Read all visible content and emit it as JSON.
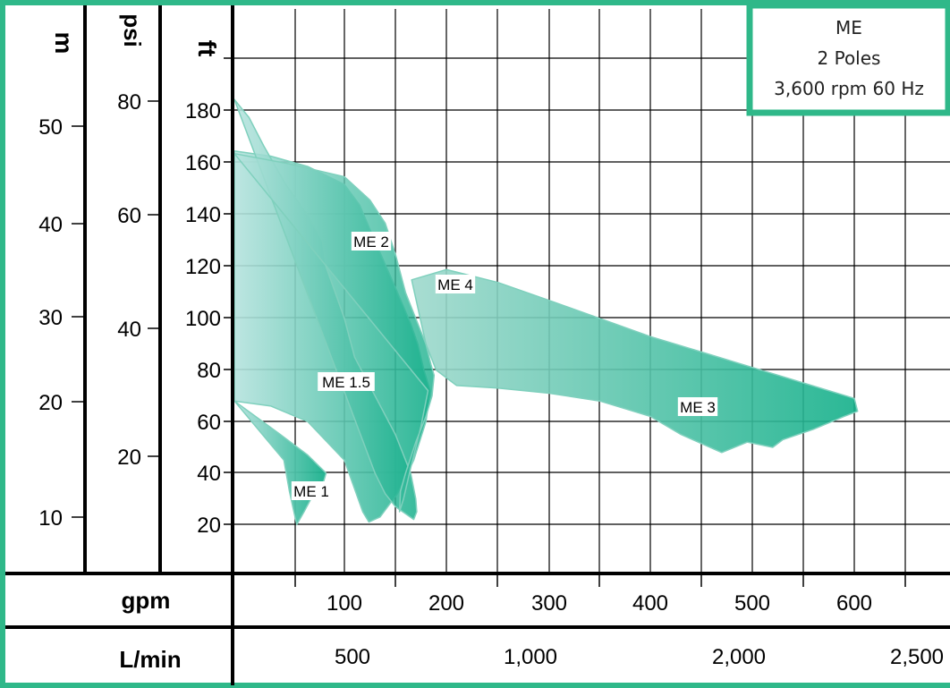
{
  "chart_data": {
    "type": "area",
    "legend_box": {
      "lines": [
        "ME",
        "2 Poles",
        "3,600 rpm 60 Hz"
      ]
    },
    "axes": {
      "left": [
        {
          "title": "m",
          "ticks": [
            "50",
            "40",
            "30",
            "20",
            "10"
          ]
        },
        {
          "title": "psi",
          "ticks": [
            "80",
            "60",
            "40",
            "20"
          ]
        },
        {
          "title": "ft",
          "ticks": [
            "180",
            "160",
            "140",
            "120",
            "100",
            "80",
            "60",
            "40",
            "20"
          ]
        }
      ],
      "bottom": [
        {
          "title": "gpm",
          "ticks": [
            "100",
            "200",
            "300",
            "400",
            "500",
            "600"
          ]
        },
        {
          "title": "L/min",
          "ticks": [
            "500",
            "1,000",
            "2,000",
            "2,500"
          ]
        }
      ]
    },
    "y_unit": "ft",
    "x_unit": "gpm",
    "xlim": [
      40,
      745
    ],
    "ylim": [
      0,
      200
    ],
    "series": [
      {
        "name": "ME 1",
        "type": "region",
        "outline_gpm_ft": [
          [
            40,
            68
          ],
          [
            65,
            55
          ],
          [
            80,
            47
          ],
          [
            90,
            40
          ],
          [
            88,
            35
          ],
          [
            84,
            33
          ],
          [
            78,
            25
          ],
          [
            74,
            20
          ],
          [
            70,
            33
          ],
          [
            67,
            45
          ]
        ]
      },
      {
        "name": "ME 1.5",
        "type": "region",
        "outline_gpm_ft": [
          [
            40,
            165
          ],
          [
            60,
            163
          ],
          [
            80,
            159
          ],
          [
            100,
            152
          ],
          [
            115,
            144
          ],
          [
            130,
            130
          ],
          [
            150,
            112
          ],
          [
            165,
            98
          ],
          [
            172,
            90
          ],
          [
            178,
            80
          ],
          [
            184,
            72
          ],
          [
            180,
            60
          ],
          [
            168,
            45
          ],
          [
            152,
            32
          ],
          [
            135,
            23
          ],
          [
            124,
            21
          ],
          [
            118,
            25
          ],
          [
            100,
            45
          ],
          [
            80,
            60
          ],
          [
            60,
            66
          ],
          [
            40,
            68
          ]
        ]
      },
      {
        "name": "ME 2",
        "type": "region",
        "outline_gpm_ft": [
          [
            40,
            185
          ],
          [
            48,
            178
          ],
          [
            56,
            167
          ],
          [
            68,
            152
          ],
          [
            80,
            140
          ],
          [
            88,
            130
          ],
          [
            90,
            120
          ],
          [
            95,
            110
          ],
          [
            100,
            100
          ],
          [
            110,
            85
          ],
          [
            130,
            70
          ],
          [
            150,
            55
          ],
          [
            165,
            40
          ],
          [
            170,
            30
          ],
          [
            171,
            25
          ],
          [
            168,
            22
          ],
          [
            150,
            27
          ],
          [
            140,
            32
          ],
          [
            130,
            40
          ]
        ]
      },
      {
        "name": "ME 4",
        "type": "region",
        "outline_gpm_ft": [
          [
            40,
            164
          ],
          [
            70,
            160
          ],
          [
            100,
            155
          ],
          [
            125,
            146
          ],
          [
            140,
            137
          ],
          [
            150,
            125
          ],
          [
            160,
            110
          ],
          [
            170,
            100
          ],
          [
            180,
            90
          ],
          [
            185,
            82
          ],
          [
            188,
            78
          ],
          [
            186,
            70
          ],
          [
            180,
            62
          ],
          [
            170,
            52
          ],
          [
            160,
            40
          ],
          [
            155,
            33
          ],
          [
            154,
            25
          ],
          [
            158,
            30
          ],
          [
            165,
            42
          ],
          [
            175,
            58
          ],
          [
            182,
            72
          ]
        ]
      },
      {
        "name": "ME 3",
        "type": "region",
        "outline_gpm_ft": [
          [
            166,
            115
          ],
          [
            200,
            119
          ],
          [
            250,
            114
          ],
          [
            300,
            107
          ],
          [
            350,
            100
          ],
          [
            400,
            93
          ],
          [
            450,
            87
          ],
          [
            500,
            81
          ],
          [
            550,
            75
          ],
          [
            600,
            69
          ],
          [
            605,
            64
          ],
          [
            590,
            62
          ],
          [
            560,
            57
          ],
          [
            530,
            53
          ],
          [
            520,
            50
          ],
          [
            495,
            52
          ],
          [
            470,
            48
          ],
          [
            430,
            55
          ],
          [
            400,
            62
          ],
          [
            350,
            68
          ],
          [
            300,
            71
          ],
          [
            250,
            73
          ],
          [
            210,
            74
          ],
          [
            190,
            80
          ],
          [
            180,
            90
          ]
        ]
      }
    ],
    "series_labels": [
      "ME 1",
      "ME 1.5",
      "ME 2",
      "ME 4",
      "ME 3"
    ],
    "grid": true
  }
}
